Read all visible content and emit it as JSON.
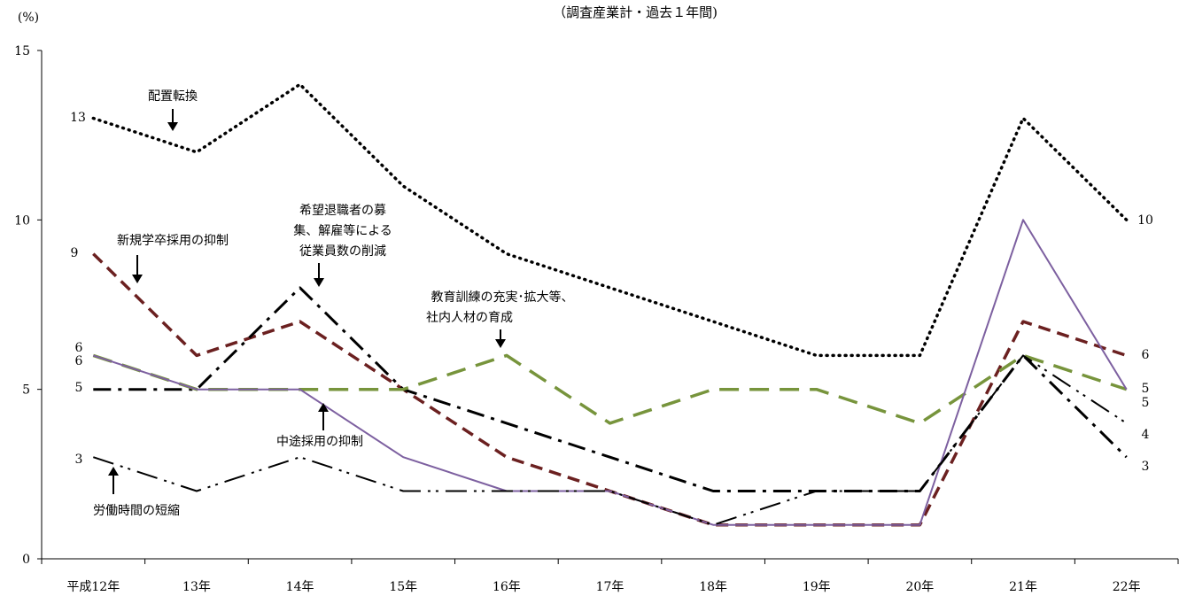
{
  "chart_data": {
    "type": "line",
    "subtitle": "（調査産業計・過去１年間)",
    "ylabel": "(%)",
    "ylim": [
      0,
      15
    ],
    "yticks": [
      "0",
      "5",
      "10",
      "15"
    ],
    "categories": [
      "平成12年",
      "13年",
      "14年",
      "15年",
      "16年",
      "17年",
      "18年",
      "19年",
      "20年",
      "21年",
      "22年"
    ],
    "series": [
      {
        "name": "配置転換",
        "color": "#000000",
        "style": "dotted",
        "values": [
          13,
          12,
          14,
          11,
          9,
          8,
          7,
          6,
          6,
          13,
          10
        ],
        "start_label": "13",
        "end_label": "10"
      },
      {
        "name": "新規学卒採用の抑制",
        "color": "#6b2020",
        "style": "dashed",
        "values": [
          9,
          6,
          7,
          5,
          3,
          2,
          1,
          1,
          1,
          7,
          6
        ],
        "start_label": "9",
        "end_label": "6"
      },
      {
        "name": "希望退職者の募集、解雇等による従業員数の削減",
        "color": "#000000",
        "style": "dashdot",
        "values": [
          5,
          5,
          8,
          5,
          4,
          3,
          2,
          2,
          2,
          6,
          3
        ],
        "start_label": "5",
        "end_label": "3"
      },
      {
        "name": "教育訓練の充実・拡大等、社内人材の育成",
        "color": "#77943c",
        "style": "longdash",
        "values": [
          6,
          5,
          5,
          5,
          6,
          4,
          5,
          5,
          4,
          6,
          5
        ],
        "start_label": "6",
        "end_label": "5"
      },
      {
        "name": "中途採用の抑制",
        "color": "#7d60a0",
        "style": "solid",
        "values": [
          6,
          5,
          5,
          3,
          2,
          2,
          1,
          1,
          1,
          10,
          5
        ],
        "start_label": "6",
        "end_label": "5"
      },
      {
        "name": "労働時間の短縮",
        "color": "#000000",
        "style": "dashdotdot",
        "values": [
          3,
          2,
          3,
          2,
          2,
          2,
          1,
          2,
          2,
          6,
          4
        ],
        "start_label": "3",
        "end_label": "4"
      }
    ],
    "annotations": [
      {
        "lines": [
          "配置転換"
        ]
      },
      {
        "lines": [
          "新規学卒採用の抑制"
        ]
      },
      {
        "lines": [
          "希望退職者の募",
          "集、解雇等による",
          "従業員数の削減"
        ]
      },
      {
        "lines": [
          "教育訓練の充実･拡大等、",
          "社内人材の育成"
        ]
      },
      {
        "lines": [
          "中途採用の抑制"
        ]
      },
      {
        "lines": [
          "労働時間の短縮"
        ]
      }
    ]
  }
}
